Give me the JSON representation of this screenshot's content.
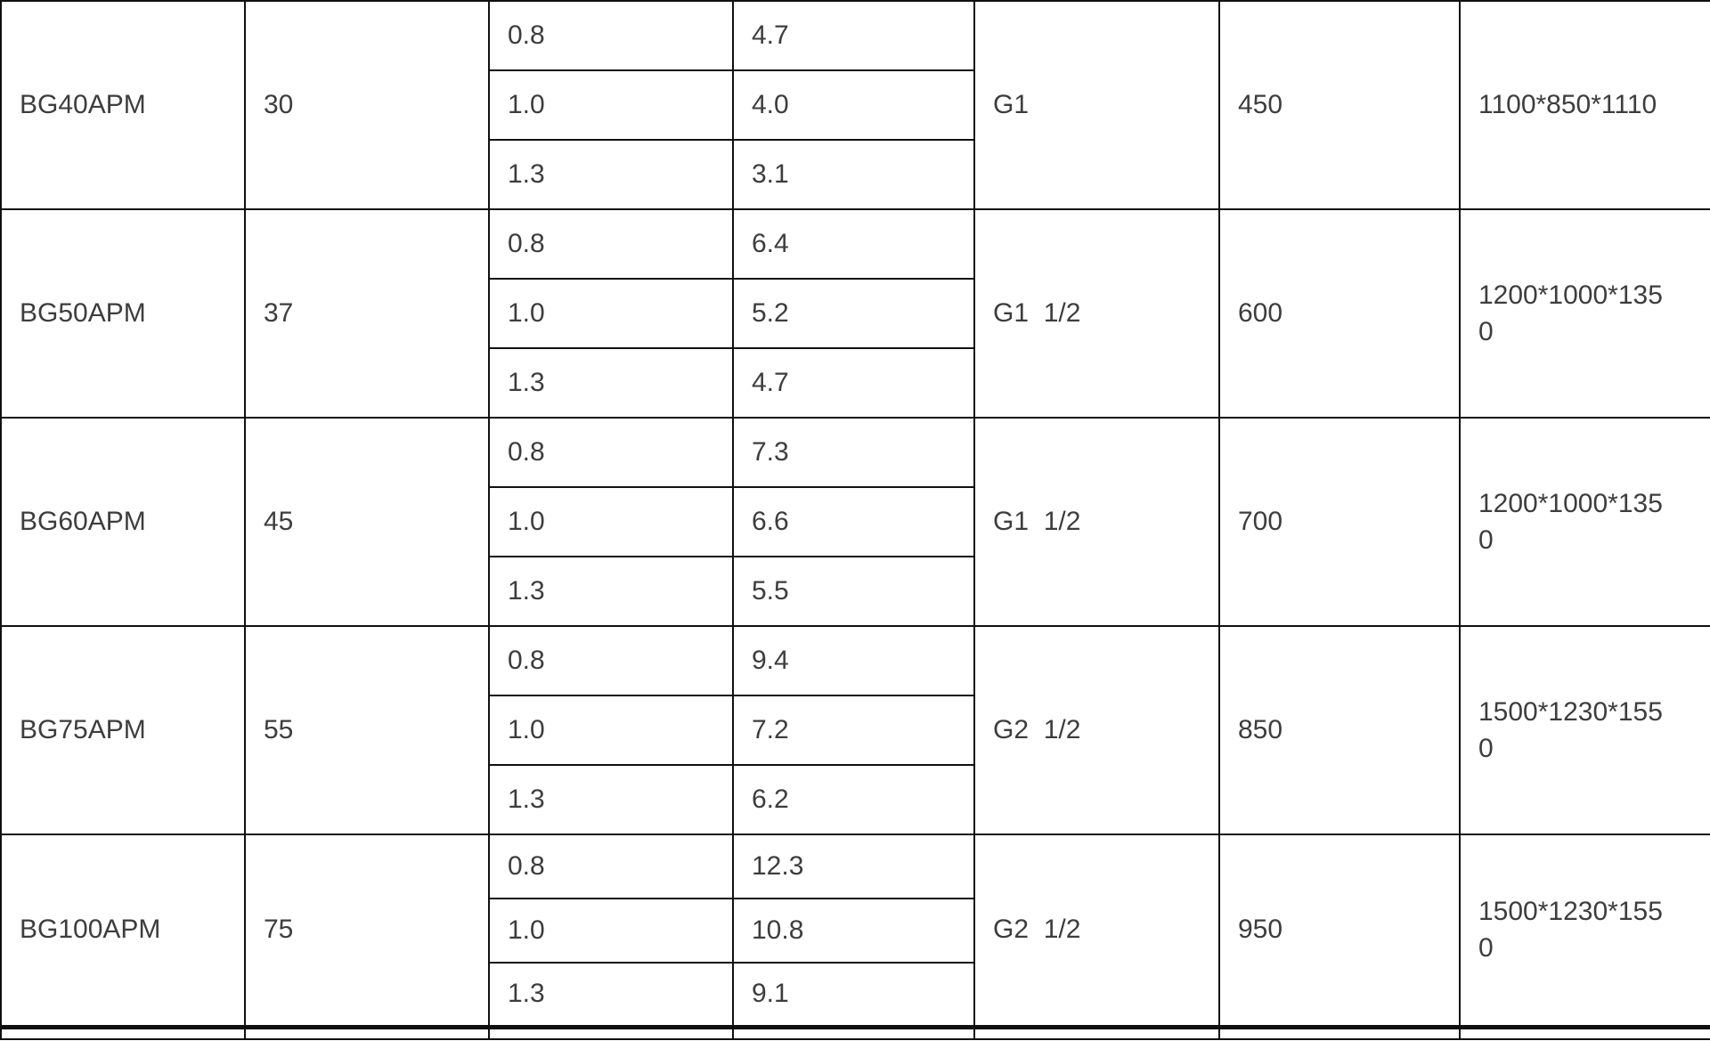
{
  "table": {
    "groups": [
      {
        "model": "BG40APM",
        "power": "30",
        "rows": [
          [
            "0.8",
            "4.7"
          ],
          [
            "1.0",
            "4.0"
          ],
          [
            "1.3",
            "3.1"
          ]
        ],
        "outlet": "G1",
        "weight": "450",
        "dimensions": "1100*850*1110"
      },
      {
        "model": "BG50APM",
        "power": "37",
        "rows": [
          [
            "0.8",
            "6.4"
          ],
          [
            "1.0",
            "5.2"
          ],
          [
            "1.3",
            "4.7"
          ]
        ],
        "outlet": "G1  1/2",
        "weight": "600",
        "dimensions": "1200*1000*1350"
      },
      {
        "model": "BG60APM",
        "power": "45",
        "rows": [
          [
            "0.8",
            "7.3"
          ],
          [
            "1.0",
            "6.6"
          ],
          [
            "1.3",
            "5.5"
          ]
        ],
        "outlet": "G1  1/2",
        "weight": "700",
        "dimensions": "1200*1000*1350"
      },
      {
        "model": "BG75APM",
        "power": "55",
        "rows": [
          [
            "0.8",
            "9.4"
          ],
          [
            "1.0",
            "7.2"
          ],
          [
            "1.3",
            "6.2"
          ]
        ],
        "outlet": "G2  1/2",
        "weight": "850",
        "dimensions": "1500*1230*1550"
      },
      {
        "model": "BG100APM",
        "power": "75",
        "rows": [
          [
            "0.8",
            "12.3"
          ],
          [
            "1.0",
            "10.8"
          ],
          [
            "1.3",
            "9.1"
          ]
        ],
        "outlet": "G2  1/2",
        "weight": "950",
        "dimensions": "1500*1230*1550"
      }
    ],
    "partial_bottom_row": true
  },
  "colors": {
    "border": "#101010",
    "text": "#3d3d3d",
    "background": "#ffffff"
  }
}
